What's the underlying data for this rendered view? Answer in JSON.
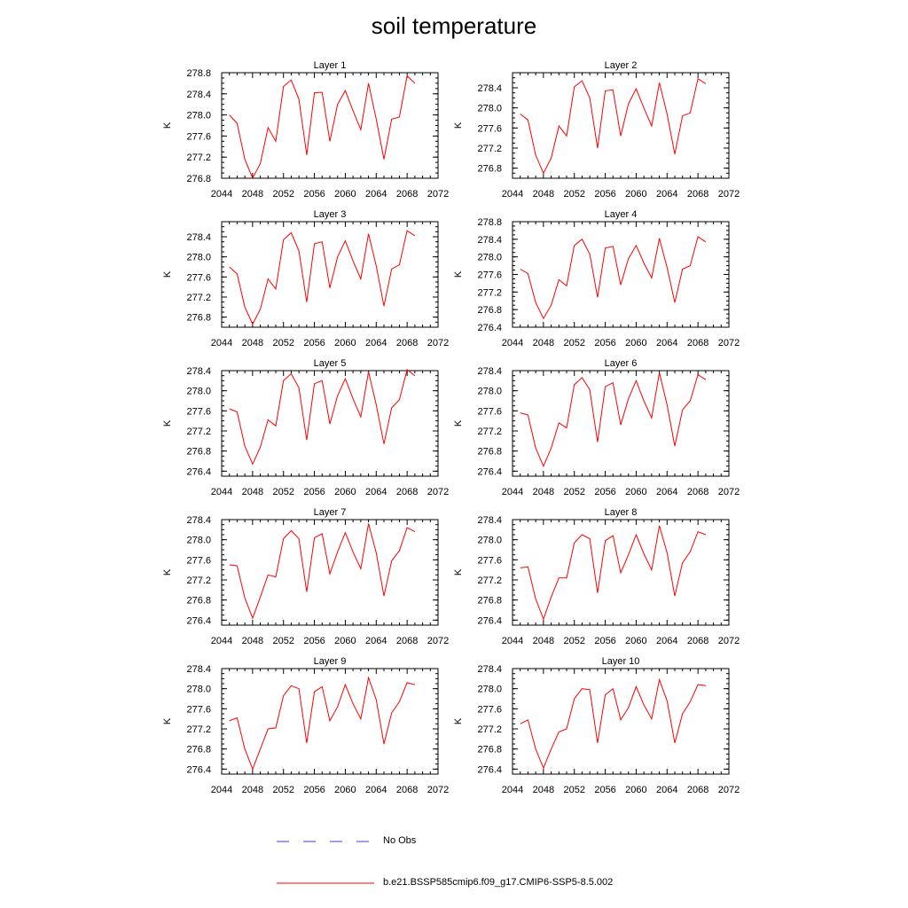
{
  "title": "soil temperature",
  "chart_data": {
    "type": "line",
    "x": [
      2045,
      2046,
      2047,
      2048,
      2049,
      2050,
      2051,
      2052,
      2053,
      2054,
      2055,
      2056,
      2057,
      2058,
      2059,
      2060,
      2061,
      2062,
      2063,
      2064,
      2065,
      2066,
      2067,
      2068,
      2069
    ],
    "x_ticks": [
      2044,
      2048,
      2052,
      2056,
      2060,
      2064,
      2068,
      2072
    ],
    "xlim": [
      2044,
      2072
    ],
    "ylabel": "K",
    "line_color": "#ff0000",
    "panels": [
      {
        "title": "Layer 1",
        "ylim": [
          276.8,
          278.8
        ],
        "y_ticks": [
          "276.8",
          "277.2",
          "277.6",
          "278.0",
          "278.4",
          "278.8"
        ],
        "values": [
          278.0,
          277.84,
          277.16,
          276.8,
          277.08,
          277.76,
          277.5,
          278.54,
          278.66,
          278.3,
          277.24,
          278.42,
          278.43,
          277.5,
          278.2,
          278.46,
          278.08,
          277.72,
          278.6,
          277.92,
          277.16,
          277.92,
          277.96,
          278.74,
          278.6
        ]
      },
      {
        "title": "Layer 2",
        "ylim": [
          276.6,
          278.7
        ],
        "y_ticks": [
          "276.8",
          "277.2",
          "277.6",
          "278.0",
          "278.4"
        ],
        "values": [
          277.88,
          277.76,
          277.06,
          276.7,
          277.0,
          277.64,
          277.44,
          278.42,
          278.54,
          278.2,
          277.2,
          278.34,
          278.36,
          277.44,
          278.08,
          278.38,
          278.0,
          277.64,
          278.5,
          277.88,
          277.08,
          277.84,
          277.9,
          278.58,
          278.48
        ]
      },
      {
        "title": "Layer 3",
        "ylim": [
          276.6,
          278.7
        ],
        "y_ticks": [
          "276.8",
          "277.2",
          "277.6",
          "278.0",
          "278.4"
        ],
        "values": [
          277.8,
          277.66,
          277.0,
          276.66,
          276.96,
          277.56,
          277.36,
          278.34,
          278.48,
          278.12,
          277.1,
          278.26,
          278.3,
          277.38,
          278.0,
          278.32,
          277.92,
          277.56,
          278.46,
          277.82,
          277.02,
          277.76,
          277.84,
          278.52,
          278.42
        ]
      },
      {
        "title": "Layer 4",
        "ylim": [
          276.4,
          278.8
        ],
        "y_ticks": [
          "276.4",
          "276.8",
          "277.2",
          "277.6",
          "278.0",
          "278.4",
          "278.8"
        ],
        "values": [
          277.72,
          277.62,
          276.96,
          276.6,
          276.9,
          277.48,
          277.34,
          278.26,
          278.4,
          278.06,
          277.08,
          278.2,
          278.24,
          277.36,
          277.96,
          278.26,
          277.86,
          277.52,
          278.42,
          277.76,
          276.96,
          277.72,
          277.8,
          278.46,
          278.34
        ]
      },
      {
        "title": "Layer 5",
        "ylim": [
          276.3,
          278.4
        ],
        "y_ticks": [
          "276.4",
          "276.8",
          "277.2",
          "277.6",
          "278.0",
          "278.4"
        ],
        "values": [
          277.64,
          277.58,
          276.9,
          276.54,
          276.88,
          277.42,
          277.3,
          278.2,
          278.34,
          278.06,
          277.02,
          278.14,
          278.2,
          277.34,
          277.9,
          278.24,
          277.84,
          277.48,
          278.38,
          277.72,
          276.94,
          277.66,
          277.82,
          278.42,
          278.3
        ]
      },
      {
        "title": "Layer 6",
        "ylim": [
          276.3,
          278.4
        ],
        "y_ticks": [
          "276.4",
          "276.8",
          "277.2",
          "277.6",
          "278.0",
          "278.4"
        ],
        "values": [
          277.56,
          277.52,
          276.86,
          276.5,
          276.86,
          277.36,
          277.26,
          278.12,
          278.26,
          278.02,
          276.98,
          278.08,
          278.16,
          277.32,
          277.84,
          278.2,
          277.8,
          277.46,
          278.36,
          277.72,
          276.9,
          277.62,
          277.8,
          278.32,
          278.22
        ]
      },
      {
        "title": "Layer 7",
        "ylim": [
          276.3,
          278.4
        ],
        "y_ticks": [
          "276.4",
          "276.8",
          "277.2",
          "277.6",
          "278.0",
          "278.4"
        ],
        "values": [
          277.5,
          277.48,
          276.84,
          276.44,
          276.86,
          277.3,
          277.26,
          278.02,
          278.18,
          278.02,
          276.96,
          278.04,
          278.12,
          277.32,
          277.76,
          278.14,
          277.76,
          277.42,
          278.32,
          277.74,
          276.88,
          277.58,
          277.78,
          278.24,
          278.16
        ]
      },
      {
        "title": "Layer 8",
        "ylim": [
          276.3,
          278.4
        ],
        "y_ticks": [
          "276.4",
          "276.8",
          "277.2",
          "277.6",
          "278.0",
          "278.4"
        ],
        "values": [
          277.44,
          277.46,
          276.82,
          276.42,
          276.86,
          277.24,
          277.24,
          277.94,
          278.1,
          278.02,
          276.94,
          277.98,
          278.08,
          277.34,
          277.7,
          278.1,
          277.72,
          277.4,
          278.28,
          277.74,
          276.88,
          277.54,
          277.76,
          278.16,
          278.1
        ]
      },
      {
        "title": "Layer 9",
        "ylim": [
          276.3,
          278.4
        ],
        "y_ticks": [
          "276.4",
          "276.8",
          "277.2",
          "277.6",
          "278.0",
          "278.4"
        ],
        "values": [
          277.36,
          277.42,
          276.8,
          276.4,
          276.8,
          277.2,
          277.22,
          277.86,
          278.06,
          278.0,
          276.92,
          277.94,
          278.04,
          277.36,
          277.64,
          278.08,
          277.7,
          277.4,
          278.22,
          277.78,
          276.9,
          277.52,
          277.74,
          278.12,
          278.08
        ]
      },
      {
        "title": "Layer 10",
        "ylim": [
          276.3,
          278.4
        ],
        "y_ticks": [
          "276.4",
          "276.8",
          "277.2",
          "277.6",
          "278.0",
          "278.4"
        ],
        "values": [
          277.3,
          277.38,
          276.8,
          276.42,
          276.8,
          277.14,
          277.2,
          277.8,
          278.0,
          277.98,
          276.92,
          277.88,
          278.0,
          277.38,
          277.62,
          278.04,
          277.68,
          277.4,
          278.18,
          277.76,
          276.92,
          277.5,
          277.74,
          278.08,
          278.06
        ]
      }
    ],
    "legend": [
      {
        "label": "No Obs",
        "color": "#3b3bd6",
        "style": "dashed"
      },
      {
        "label": "b.e21.BSSP585cmip6.f09_g17.CMIP6-SSP5-8.5.002",
        "color": "#ff0000",
        "style": "solid"
      }
    ]
  }
}
